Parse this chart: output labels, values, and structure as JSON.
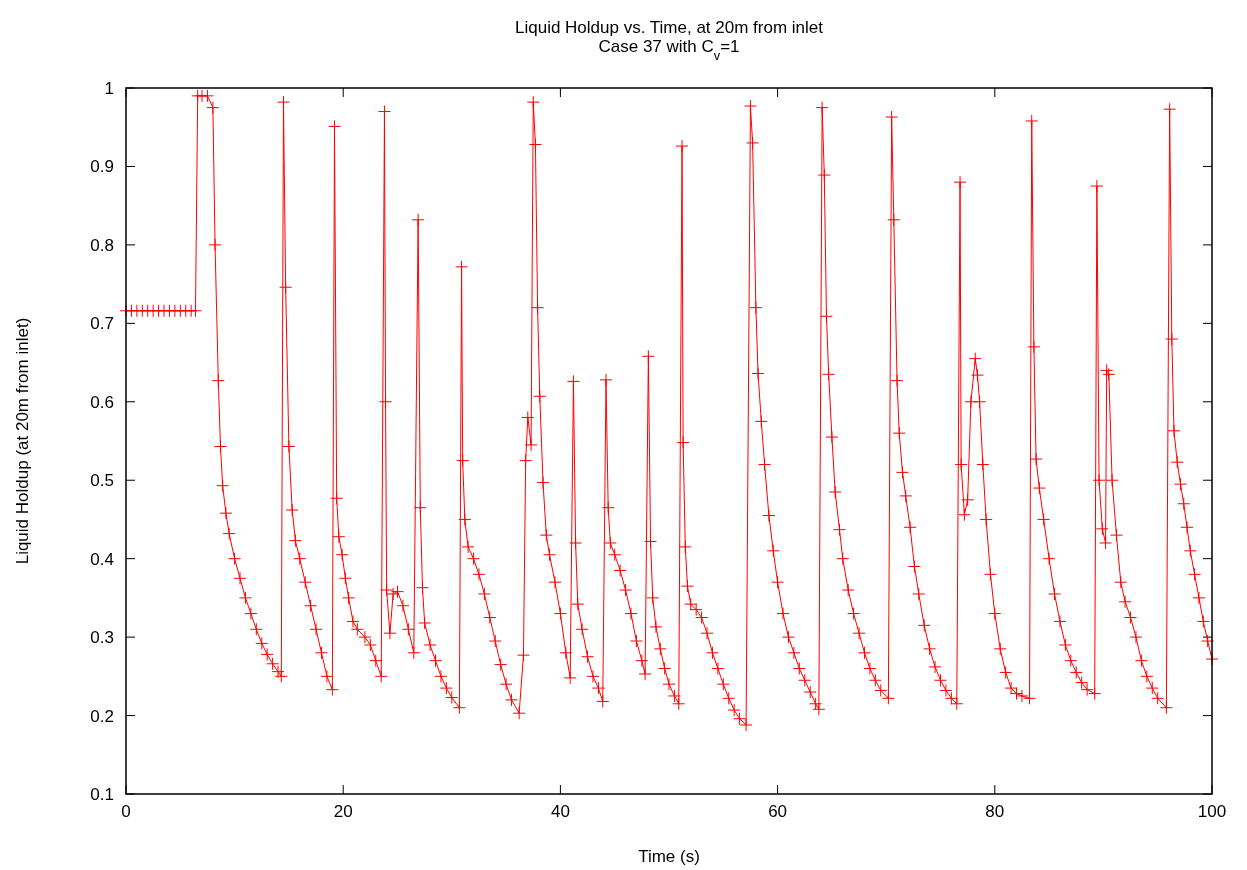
{
  "chart_data": {
    "type": "line",
    "title": "Liquid Holdup vs. Time, at 20m from inlet",
    "subtitle": "Case 37 with C$_{v}$=1",
    "xlabel": "Time (s)",
    "ylabel": "Liquid Holdup (at 20m from inlet)",
    "xlim": [
      0,
      100
    ],
    "ylim": [
      0.1,
      1
    ],
    "xticks": [
      0,
      20,
      40,
      60,
      80,
      100
    ],
    "yticks": [
      0.1,
      0.2,
      0.3,
      0.4,
      0.5,
      0.6,
      0.7,
      0.8,
      0.9,
      1
    ],
    "grid": false,
    "marker": "cross",
    "line_style": "solid",
    "series": [
      {
        "color": "#ff0000",
        "x": [
          0,
          0.5,
          1,
          1.5,
          2,
          2.5,
          3,
          3.5,
          4,
          4.5,
          5,
          5.5,
          6,
          6.4,
          6.6,
          7,
          7.5,
          8,
          8.2,
          8.5,
          8.7,
          8.9,
          9.2,
          9.5,
          10,
          10.5,
          11,
          11.5,
          12,
          12.5,
          13,
          13.5,
          14,
          14.3,
          14.5,
          14.7,
          15,
          15.3,
          15.6,
          16,
          16.5,
          17,
          17.5,
          18,
          18.5,
          19,
          19.2,
          19.4,
          19.6,
          19.9,
          20.2,
          20.5,
          20.9,
          21.3,
          22,
          22.5,
          23,
          23.5,
          23.8,
          23.9,
          24,
          24.3,
          24.6,
          25,
          25.5,
          26,
          26.5,
          26.9,
          27.1,
          27.3,
          27.5,
          28,
          28.5,
          29,
          29.5,
          30,
          30.7,
          30.9,
          31,
          31.2,
          31.5,
          32,
          32.5,
          33,
          33.5,
          34,
          34.5,
          35,
          35.5,
          36.2,
          36.6,
          36.8,
          37,
          37.3,
          37.5,
          37.7,
          37.9,
          38.1,
          38.4,
          38.7,
          39,
          39.5,
          40,
          40.5,
          40.9,
          41.2,
          41.4,
          41.6,
          42,
          42.5,
          43,
          43.5,
          43.9,
          44.2,
          44.4,
          44.6,
          45,
          45.5,
          46,
          46.5,
          47,
          47.5,
          47.8,
          48.1,
          48.3,
          48.5,
          48.8,
          49.2,
          49.6,
          50,
          50.5,
          50.9,
          51.2,
          51.3,
          51.5,
          51.7,
          52,
          52.5,
          53,
          53.5,
          54,
          54.5,
          55,
          55.5,
          56,
          56.5,
          57.1,
          57.5,
          57.7,
          58,
          58.2,
          58.5,
          58.8,
          59.2,
          59.6,
          60,
          60.5,
          61,
          61.5,
          62,
          62.5,
          63,
          63.5,
          63.8,
          64.1,
          64.3,
          64.5,
          64.7,
          65,
          65.3,
          65.7,
          66,
          66.5,
          67,
          67.5,
          68,
          68.5,
          69,
          69.5,
          70.2,
          70.5,
          70.7,
          71,
          71.2,
          71.5,
          71.8,
          72.2,
          72.6,
          73,
          73.5,
          74,
          74.5,
          75,
          75.5,
          76,
          76.5,
          76.8,
          76.9,
          77.2,
          77.5,
          77.8,
          78.2,
          78.4,
          78.6,
          78.9,
          79.2,
          79.6,
          80,
          80.5,
          81,
          81.5,
          82,
          82.5,
          83.2,
          83.4,
          83.6,
          83.8,
          84.1,
          84.5,
          85,
          85.5,
          86,
          86.5,
          87,
          87.5,
          88,
          88.5,
          89.2,
          89.4,
          89.6,
          89.9,
          90.2,
          90.3,
          90.5,
          90.8,
          91.2,
          91.6,
          92,
          92.5,
          93,
          93.5,
          94,
          94.5,
          95,
          95.8,
          96.1,
          96.3,
          96.5,
          96.8,
          97.1,
          97.4,
          97.7,
          98,
          98.4,
          98.8,
          99.2,
          99.6,
          100
        ],
        "values": [
          0.716,
          0.716,
          0.716,
          0.716,
          0.716,
          0.716,
          0.716,
          0.716,
          0.716,
          0.716,
          0.716,
          0.716,
          0.716,
          0.716,
          0.99,
          0.99,
          0.99,
          0.975,
          0.8,
          0.627,
          0.543,
          0.493,
          0.458,
          0.432,
          0.4,
          0.375,
          0.35,
          0.33,
          0.31,
          0.292,
          0.278,
          0.266,
          0.256,
          0.25,
          0.982,
          0.746,
          0.543,
          0.462,
          0.423,
          0.4,
          0.37,
          0.34,
          0.31,
          0.28,
          0.25,
          0.233,
          0.951,
          0.477,
          0.428,
          0.405,
          0.375,
          0.35,
          0.32,
          0.31,
          0.3,
          0.29,
          0.27,
          0.25,
          0.97,
          0.6,
          0.36,
          0.305,
          0.355,
          0.358,
          0.34,
          0.31,
          0.28,
          0.832,
          0.465,
          0.363,
          0.318,
          0.29,
          0.27,
          0.25,
          0.235,
          0.223,
          0.21,
          0.772,
          0.525,
          0.45,
          0.415,
          0.4,
          0.38,
          0.355,
          0.325,
          0.295,
          0.265,
          0.24,
          0.22,
          0.203,
          0.277,
          0.525,
          0.58,
          0.545,
          0.982,
          0.928,
          0.72,
          0.607,
          0.497,
          0.43,
          0.405,
          0.37,
          0.33,
          0.28,
          0.248,
          0.626,
          0.42,
          0.342,
          0.31,
          0.275,
          0.25,
          0.235,
          0.218,
          0.628,
          0.465,
          0.42,
          0.405,
          0.385,
          0.36,
          0.33,
          0.295,
          0.27,
          0.253,
          0.658,
          0.422,
          0.35,
          0.313,
          0.285,
          0.26,
          0.24,
          0.225,
          0.215,
          0.926,
          0.548,
          0.415,
          0.365,
          0.342,
          0.335,
          0.325,
          0.305,
          0.28,
          0.26,
          0.24,
          0.222,
          0.207,
          0.196,
          0.188,
          0.977,
          0.93,
          0.72,
          0.636,
          0.575,
          0.52,
          0.455,
          0.41,
          0.37,
          0.33,
          0.3,
          0.28,
          0.26,
          0.245,
          0.23,
          0.215,
          0.208,
          0.975,
          0.889,
          0.709,
          0.635,
          0.555,
          0.485,
          0.437,
          0.4,
          0.36,
          0.33,
          0.305,
          0.28,
          0.26,
          0.245,
          0.232,
          0.222,
          0.963,
          0.832,
          0.627,
          0.56,
          0.51,
          0.48,
          0.44,
          0.39,
          0.355,
          0.315,
          0.285,
          0.262,
          0.245,
          0.232,
          0.222,
          0.215,
          0.88,
          0.52,
          0.456,
          0.475,
          0.6,
          0.655,
          0.634,
          0.6,
          0.52,
          0.45,
          0.38,
          0.33,
          0.285,
          0.255,
          0.235,
          0.228,
          0.225,
          0.222,
          0.958,
          0.67,
          0.527,
          0.49,
          0.45,
          0.4,
          0.355,
          0.32,
          0.29,
          0.27,
          0.255,
          0.242,
          0.233,
          0.228,
          0.875,
          0.5,
          0.438,
          0.42,
          0.64,
          0.635,
          0.5,
          0.43,
          0.37,
          0.345,
          0.325,
          0.3,
          0.27,
          0.25,
          0.235,
          0.222,
          0.21,
          0.973,
          0.68,
          0.563,
          0.523,
          0.495,
          0.47,
          0.44,
          0.41,
          0.38,
          0.35,
          0.32,
          0.295,
          0.272
        ]
      }
    ]
  }
}
